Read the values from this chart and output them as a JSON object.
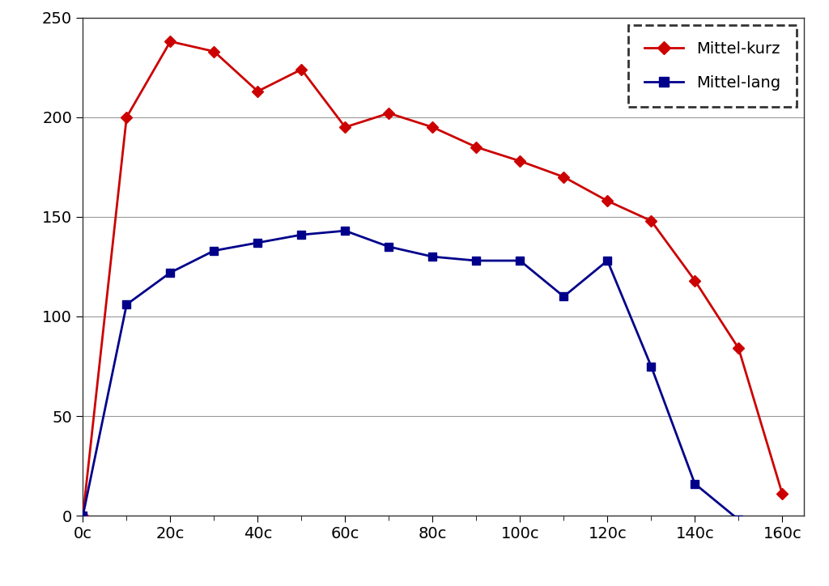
{
  "x_labels": [
    "0c",
    "20c",
    "40c",
    "60c",
    "80c",
    "100c",
    "120c",
    "140c",
    "160c"
  ],
  "x_ticks": [
    0,
    20,
    40,
    60,
    80,
    100,
    120,
    140,
    160
  ],
  "mittel_kurz_x": [
    0,
    10,
    20,
    30,
    40,
    50,
    60,
    70,
    80,
    90,
    100,
    110,
    120,
    130,
    140,
    150,
    160
  ],
  "mittel_kurz_y": [
    0,
    200,
    238,
    233,
    213,
    224,
    195,
    202,
    195,
    185,
    178,
    170,
    158,
    148,
    118,
    84,
    11
  ],
  "mittel_lang_x": [
    0,
    10,
    20,
    30,
    40,
    50,
    60,
    70,
    80,
    90,
    100,
    110,
    120,
    130,
    140,
    150
  ],
  "mittel_lang_y": [
    0,
    106,
    122,
    133,
    137,
    141,
    143,
    135,
    130,
    128,
    128,
    110,
    128,
    75,
    16,
    -2
  ],
  "ylim": [
    0,
    250
  ],
  "xlim": [
    0,
    165
  ],
  "color_kurz": "#cc0000",
  "color_lang": "#00008B",
  "bg_color": "#ffffff",
  "legend_label_kurz": "Mittel-kurz",
  "legend_label_lang": "Mittel-lang",
  "yticks": [
    0,
    50,
    100,
    150,
    200,
    250
  ],
  "grid_color": "#999999",
  "marker_kurz": "D",
  "marker_lang": "s"
}
